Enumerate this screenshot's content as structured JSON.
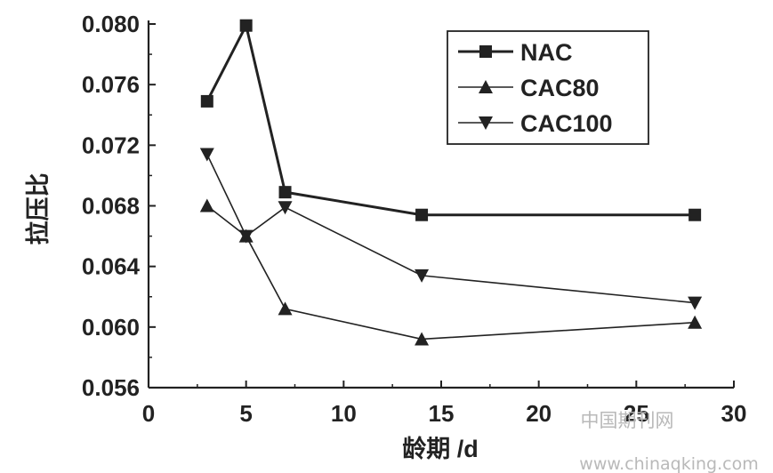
{
  "chart_data": {
    "type": "line",
    "xlabel": "龄期 /d",
    "ylabel": "拉压比",
    "xlim": [
      0,
      30
    ],
    "ylim": [
      0.056,
      0.08
    ],
    "xticks": [
      "0",
      "5",
      "10",
      "15",
      "20",
      "25",
      "30"
    ],
    "yticks": [
      "0.056",
      "0.060",
      "0.064",
      "0.068",
      "0.072",
      "0.076",
      "0.080"
    ],
    "grid": false,
    "legend_position": "top-right",
    "series": [
      {
        "name": "NAC",
        "marker": "square",
        "x": [
          3,
          5,
          7,
          14,
          28
        ],
        "y": [
          0.0749,
          0.0799,
          0.0689,
          0.0674,
          0.0674
        ]
      },
      {
        "name": "CAC80",
        "marker": "triangle-up",
        "x": [
          3,
          5,
          7,
          14,
          28
        ],
        "y": [
          0.068,
          0.066,
          0.0612,
          0.0592,
          0.0603
        ]
      },
      {
        "name": "CAC100",
        "marker": "triangle-down",
        "x": [
          3,
          5,
          7,
          14,
          28
        ],
        "y": [
          0.0714,
          0.066,
          0.0679,
          0.0634,
          0.0616
        ]
      }
    ]
  },
  "watermark": {
    "line1": "中国期刊网",
    "line2": "www.chinaqking.com"
  },
  "colors": {
    "line": "#222222",
    "watermark": "#b9b9b9"
  }
}
